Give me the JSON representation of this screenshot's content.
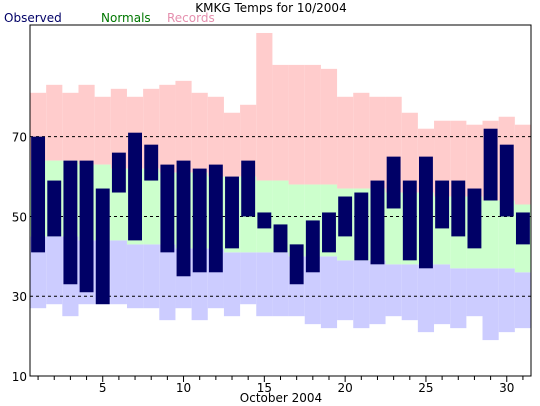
{
  "chart_data": {
    "type": "bar",
    "title": "KMKG Temps for 10/2004",
    "xlabel": "October 2004",
    "ylabel": "",
    "ylim": [
      10,
      98
    ],
    "xlim": [
      0.5,
      31.5
    ],
    "y_ticks": [
      10,
      30,
      50,
      70
    ],
    "x_ticks": [
      5,
      10,
      15,
      20,
      25,
      30
    ],
    "gridlines_y": [
      30,
      50,
      70
    ],
    "legend": {
      "placement": "top-left",
      "entries": [
        {
          "label": "Observed",
          "color": "#000066"
        },
        {
          "label": "Normals",
          "color": "#007700"
        },
        {
          "label": "Records",
          "color": "#e58fae"
        }
      ]
    },
    "colors": {
      "observed": "#000066",
      "normals": "#ccffcc",
      "records_high": "#ffcccc",
      "records_low": "#ccccff"
    },
    "days": [
      1,
      2,
      3,
      4,
      5,
      6,
      7,
      8,
      9,
      10,
      11,
      12,
      13,
      14,
      15,
      16,
      17,
      18,
      19,
      20,
      21,
      22,
      23,
      24,
      25,
      26,
      27,
      28,
      29,
      30,
      31
    ],
    "series": [
      {
        "name": "Observed",
        "high": [
          70,
          59,
          64,
          64,
          57,
          66,
          71,
          68,
          63,
          64,
          62,
          63,
          60,
          64,
          51,
          48,
          43,
          49,
          51,
          55,
          56,
          59,
          65,
          59,
          65,
          59,
          59,
          57,
          72,
          68,
          51
        ],
        "low": [
          41,
          45,
          33,
          31,
          28,
          56,
          44,
          59,
          41,
          35,
          36,
          36,
          42,
          50,
          47,
          41,
          33,
          36,
          41,
          45,
          39,
          38,
          52,
          39,
          37,
          47,
          45,
          42,
          54,
          50,
          43
        ]
      },
      {
        "name": "Normals",
        "high": [
          64,
          64,
          64,
          63,
          63,
          62,
          62,
          62,
          61,
          61,
          61,
          60,
          60,
          60,
          59,
          59,
          58,
          58,
          58,
          57,
          57,
          57,
          56,
          56,
          56,
          55,
          55,
          55,
          54,
          54,
          53
        ],
        "low": [
          45,
          45,
          45,
          44,
          44,
          44,
          43,
          43,
          43,
          42,
          42,
          42,
          41,
          41,
          41,
          41,
          40,
          40,
          40,
          39,
          39,
          39,
          38,
          38,
          38,
          38,
          37,
          37,
          37,
          37,
          36
        ]
      },
      {
        "name": "Records",
        "high": [
          81,
          83,
          81,
          83,
          80,
          82,
          80,
          82,
          83,
          84,
          81,
          80,
          76,
          78,
          96,
          88,
          88,
          88,
          87,
          80,
          81,
          80,
          80,
          76,
          72,
          74,
          74,
          73,
          74,
          75,
          73
        ],
        "low": [
          27,
          28,
          25,
          28,
          28,
          28,
          27,
          27,
          24,
          27,
          24,
          27,
          25,
          28,
          25,
          25,
          25,
          23,
          22,
          24,
          22,
          23,
          25,
          24,
          21,
          23,
          22,
          25,
          19,
          21,
          22
        ]
      }
    ]
  }
}
